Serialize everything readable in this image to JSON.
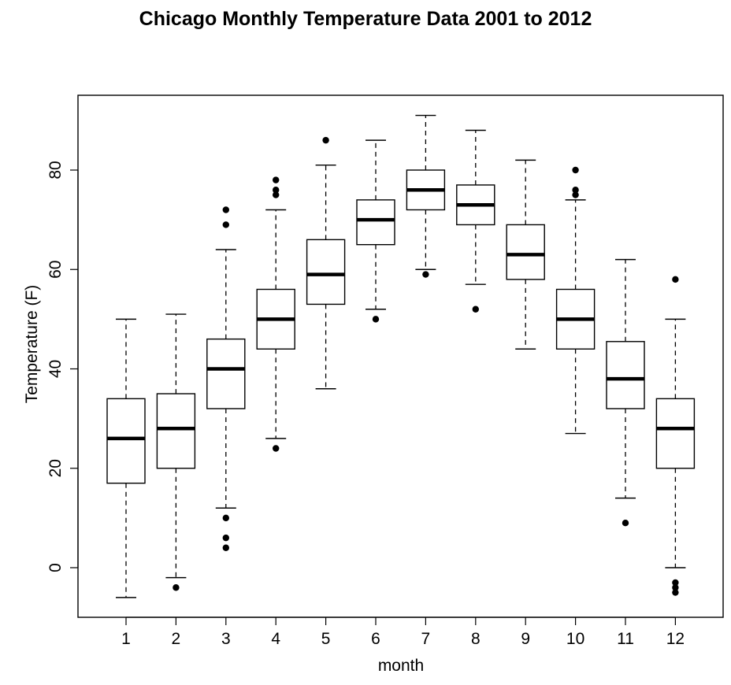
{
  "chart_data": {
    "type": "boxplot",
    "title": "Chicago Monthly Temperature Data 2001 to 2012",
    "xlabel": "month",
    "ylabel": "Temperature (F)",
    "categories": [
      "1",
      "2",
      "3",
      "4",
      "5",
      "6",
      "7",
      "8",
      "9",
      "10",
      "11",
      "12"
    ],
    "y_ticks": [
      "0",
      "20",
      "40",
      "60",
      "80"
    ],
    "ylim": [
      -10,
      95
    ],
    "grid": false,
    "boxes": [
      {
        "month": "1",
        "whisker_low": -6,
        "q1": 17,
        "median": 26,
        "q3": 34,
        "whisker_high": 50,
        "outliers": []
      },
      {
        "month": "2",
        "whisker_low": -2,
        "q1": 20,
        "median": 28,
        "q3": 35,
        "whisker_high": 51,
        "outliers": [
          -4
        ]
      },
      {
        "month": "3",
        "whisker_low": 12,
        "q1": 32,
        "median": 40,
        "q3": 46,
        "whisker_high": 64,
        "outliers": [
          72,
          69,
          10,
          6,
          4
        ]
      },
      {
        "month": "4",
        "whisker_low": 26,
        "q1": 44,
        "median": 50,
        "q3": 56,
        "whisker_high": 72,
        "outliers": [
          78,
          76,
          75,
          24
        ]
      },
      {
        "month": "5",
        "whisker_low": 36,
        "q1": 53,
        "median": 59,
        "q3": 66,
        "whisker_high": 81,
        "outliers": [
          86
        ]
      },
      {
        "month": "6",
        "whisker_low": 52,
        "q1": 65,
        "median": 70,
        "q3": 74,
        "whisker_high": 86,
        "outliers": [
          50
        ]
      },
      {
        "month": "7",
        "whisker_low": 60,
        "q1": 72,
        "median": 76,
        "q3": 80,
        "whisker_high": 91,
        "outliers": [
          59
        ]
      },
      {
        "month": "8",
        "whisker_low": 57,
        "q1": 69,
        "median": 73,
        "q3": 77,
        "whisker_high": 88,
        "outliers": [
          52
        ]
      },
      {
        "month": "9",
        "whisker_low": 44,
        "q1": 58,
        "median": 63,
        "q3": 69,
        "whisker_high": 82,
        "outliers": []
      },
      {
        "month": "10",
        "whisker_low": 27,
        "q1": 44,
        "median": 50,
        "q3": 56,
        "whisker_high": 74,
        "outliers": [
          80,
          76,
          75
        ]
      },
      {
        "month": "11",
        "whisker_low": 14,
        "q1": 32,
        "median": 38,
        "q3": 45.5,
        "whisker_high": 62,
        "outliers": [
          9
        ]
      },
      {
        "month": "12",
        "whisker_low": 0,
        "q1": 20,
        "median": 28,
        "q3": 34,
        "whisker_high": 50,
        "outliers": [
          58,
          -3,
          -4,
          -5
        ]
      }
    ]
  }
}
